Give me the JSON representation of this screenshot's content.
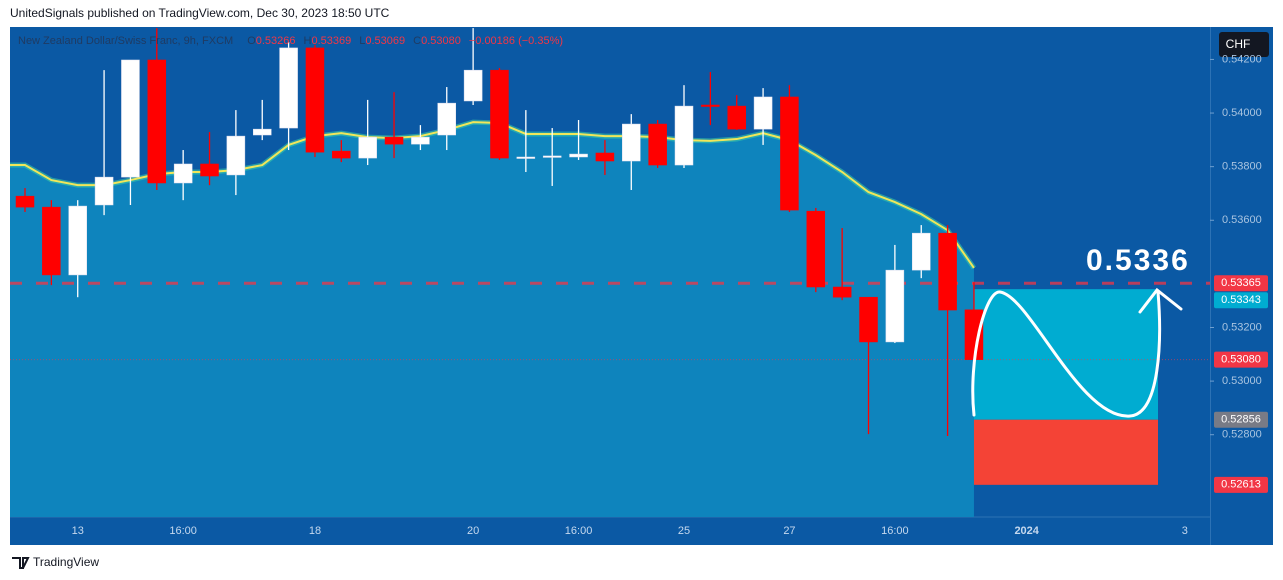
{
  "header": {
    "text": "UnitedSignals published on TradingView.com, Dec 30, 2023 18:50 UTC"
  },
  "footer": {
    "brand": "TradingView"
  },
  "currency_button": "CHF",
  "chart_data": {
    "type": "candlestick",
    "symbol": "New Zealand Dollar/Swiss Franc, 9h, FXCM",
    "legend_values": [
      {
        "key": "O",
        "value": "0.53266"
      },
      {
        "key": "H",
        "value": "0.53369"
      },
      {
        "key": "L",
        "value": "0.53069"
      },
      {
        "key": "C",
        "value": "0.53080"
      }
    ],
    "change": "−0.00186 (−0.35%)",
    "categories": [
      null,
      null,
      "13",
      null,
      null,
      null,
      "16:00",
      null,
      null,
      null,
      null,
      "18",
      null,
      null,
      null,
      null,
      null,
      "20",
      null,
      null,
      null,
      "16:00",
      null,
      null,
      null,
      "25",
      null,
      null,
      null,
      "27",
      null,
      null,
      null,
      "16:00",
      null,
      null,
      null,
      null,
      "2024",
      null,
      null,
      null,
      null,
      null,
      "3"
    ],
    "open": [
      0.5369,
      0.53649,
      0.53396,
      0.53657,
      0.53761,
      0.54198,
      0.53739,
      0.5381,
      0.53769,
      0.53918,
      0.53944,
      0.54243,
      0.53858,
      0.53832,
      0.5391,
      0.53884,
      0.53918,
      0.54045,
      0.5416,
      0.53832,
      0.53836,
      0.53836,
      0.53851,
      0.53821,
      0.53959,
      0.53806,
      0.5403,
      0.54026,
      0.5394,
      0.5406,
      0.53634,
      0.53351,
      0.53313,
      0.53146,
      0.53414,
      0.53552,
      0.53266,
      null,
      null,
      null,
      null,
      null,
      null,
      null,
      null
    ],
    "high": [
      0.5372,
      0.53675,
      0.53675,
      0.5416,
      0.54198,
      0.54317,
      0.53862,
      0.53929,
      0.54011,
      0.54049,
      0.54265,
      0.54254,
      0.53899,
      0.54049,
      0.54078,
      0.53955,
      0.54097,
      0.54317,
      0.54168,
      0.54011,
      0.53944,
      0.53974,
      0.53899,
      0.53996,
      0.53974,
      0.54104,
      0.54153,
      0.54067,
      0.54093,
      0.54104,
      0.53646,
      0.53571,
      0.53313,
      0.53508,
      0.53582,
      0.53582,
      0.53369,
      null,
      null,
      null,
      null,
      null,
      null,
      null,
      null
    ],
    "low": [
      0.53631,
      0.53358,
      0.53313,
      0.53619,
      0.53657,
      0.53713,
      0.53675,
      0.53731,
      0.53694,
      0.53899,
      0.53862,
      0.53836,
      0.53817,
      0.53806,
      0.53832,
      0.53862,
      0.53862,
      0.5403,
      0.53825,
      0.5378,
      0.53728,
      0.53825,
      0.53769,
      0.53713,
      0.53795,
      0.53795,
      0.53955,
      0.53937,
      0.53881,
      0.53631,
      0.53332,
      0.53302,
      0.52802,
      0.53142,
      0.53384,
      0.52795,
      0.53069,
      null,
      null,
      null,
      null,
      null,
      null,
      null,
      null
    ],
    "close": [
      0.53649,
      0.53396,
      0.53653,
      0.53761,
      0.54198,
      0.53739,
      0.5381,
      0.53765,
      0.53914,
      0.5394,
      0.54243,
      0.53854,
      0.53832,
      0.5391,
      0.53884,
      0.5391,
      0.54037,
      0.5416,
      0.53832,
      0.53836,
      0.5384,
      0.53847,
      0.53821,
      0.53959,
      0.53806,
      0.54026,
      0.54026,
      0.5394,
      0.5406,
      0.53638,
      0.53351,
      0.53313,
      0.53146,
      0.53414,
      0.53552,
      0.53265,
      0.5308,
      null,
      null,
      null,
      null,
      null,
      null,
      null,
      null
    ],
    "up_color": "#ffffff",
    "down_color": "#ff0000",
    "moving_average": {
      "color": "#f0e65a",
      "fill": "#0e84bd",
      "values": [
        0.53806,
        0.5375,
        0.53731,
        0.53731,
        0.5375,
        0.53772,
        0.5378,
        0.5378,
        0.53787,
        0.53806,
        0.53881,
        0.53914,
        0.53925,
        0.5391,
        0.53907,
        0.53914,
        0.53937,
        0.53966,
        0.53963,
        0.53922,
        0.53922,
        0.53922,
        0.53914,
        0.53914,
        0.5391,
        0.53899,
        0.53896,
        0.53903,
        0.53925,
        0.53899,
        0.53843,
        0.5378,
        0.53705,
        0.53668,
        0.53623,
        0.53563,
        0.53422,
        null,
        null,
        null,
        null,
        null,
        null,
        null,
        null
      ]
    },
    "ylim": [
      0.52493,
      0.54321
    ],
    "yticks": [
      {
        "value": 0.528,
        "label": "0.52800"
      },
      {
        "value": 0.53,
        "label": "0.53000"
      },
      {
        "value": 0.532,
        "label": "0.53200"
      },
      {
        "value": 0.536,
        "label": "0.53600"
      },
      {
        "value": 0.538,
        "label": "0.53800"
      },
      {
        "value": 0.54,
        "label": "0.54000"
      },
      {
        "value": 0.542,
        "label": "0.54200"
      }
    ],
    "price_lines": [
      {
        "value": 0.53365,
        "label": "0.53365",
        "color": "#f23645",
        "style": "dashed"
      },
      {
        "value": 0.5308,
        "label": "0.53080",
        "color": "#f23645",
        "style": "dotted"
      }
    ],
    "position": {
      "target": {
        "value": 0.53343,
        "label": "0.53343"
      },
      "entry": {
        "value": 0.52856,
        "label": "0.52856"
      },
      "stop": {
        "value": 0.52613,
        "label": "0.52613"
      },
      "profit_color": "#00acd1",
      "loss_color": "#f44336"
    },
    "annotation": "0.5336"
  }
}
